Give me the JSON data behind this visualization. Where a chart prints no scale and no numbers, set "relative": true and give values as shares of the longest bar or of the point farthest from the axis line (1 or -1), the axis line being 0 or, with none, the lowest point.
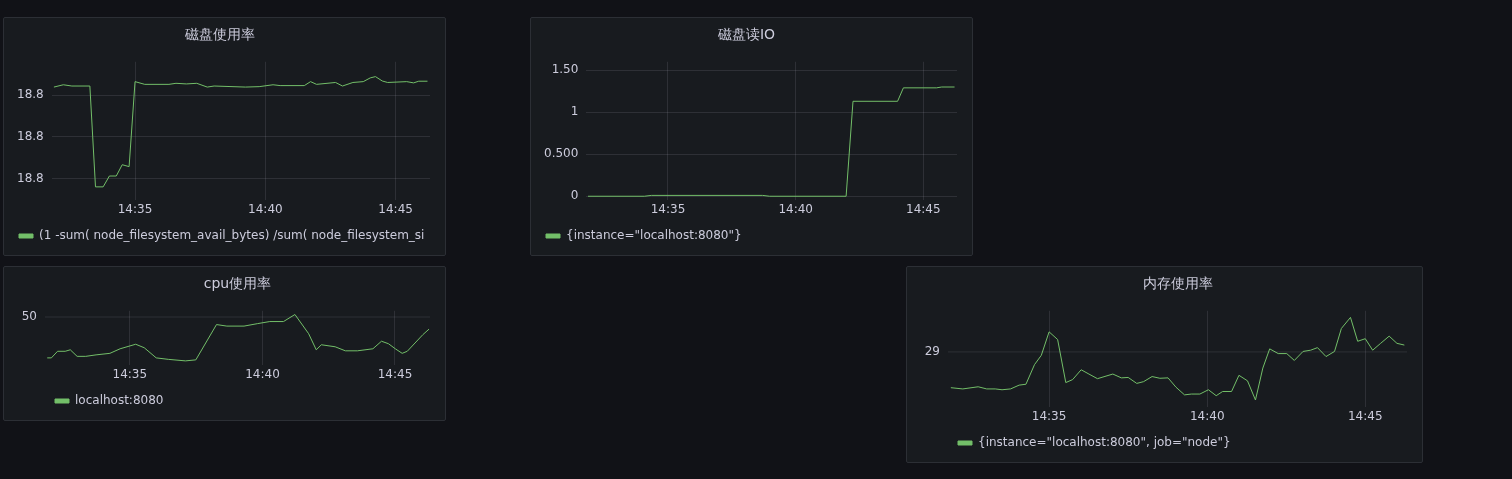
{
  "chart_data": [
    {
      "type": "line",
      "title": "磁盘使用率",
      "legend": "bottom left",
      "grid": true,
      "xlim": [
        14.53,
        14.772
      ],
      "xticks": [
        {
          "value": 14.5833,
          "label": "14:35"
        },
        {
          "value": 14.6667,
          "label": "14:40"
        },
        {
          "value": 14.75,
          "label": "14:45"
        }
      ],
      "ylim": [
        18.79,
        18.856
      ],
      "yticks": [
        {
          "value": 18.8,
          "label": "18.8"
        },
        {
          "value": 18.82,
          "label": "18.8"
        },
        {
          "value": 18.84,
          "label": "18.8"
        }
      ],
      "x": [
        14.5314,
        14.5374,
        14.5429,
        14.5544,
        14.558,
        14.5629,
        14.5669,
        14.5713,
        14.5751,
        14.5795,
        14.5833,
        14.5895,
        14.605,
        14.6095,
        14.6161,
        14.6228,
        14.6295,
        14.6339,
        14.6539,
        14.6627,
        14.6716,
        14.6761,
        14.6916,
        14.6956,
        14.6994,
        14.7116,
        14.716,
        14.7227,
        14.7293,
        14.7338,
        14.7371,
        14.7415,
        14.7449,
        14.7571,
        14.7615,
        14.7648,
        14.7704
      ],
      "series": [
        {
          "name": "(1 -sum( node_filesystem_avail_bytes) /sum( node_filesystem_si",
          "color": "#73bf69",
          "values": [
            18.8439,
            18.845,
            18.8444,
            18.8444,
            18.7961,
            18.7961,
            18.8013,
            18.8013,
            18.8067,
            18.8058,
            18.8465,
            18.8452,
            18.8452,
            18.8457,
            18.8454,
            18.8457,
            18.8439,
            18.8444,
            18.8439,
            18.8441,
            18.845,
            18.8446,
            18.8446,
            18.8465,
            18.8452,
            18.8461,
            18.8444,
            18.8461,
            18.8465,
            18.8483,
            18.8489,
            18.8468,
            18.8461,
            18.8465,
            18.8459,
            18.8467,
            18.8467
          ]
        }
      ]
    },
    {
      "type": "line",
      "title": "磁盘读IO",
      "legend": "bottom left",
      "grid": true,
      "xlim": [
        14.53,
        14.772
      ],
      "xticks": [
        {
          "value": 14.5833,
          "label": "14:35"
        },
        {
          "value": 14.6667,
          "label": "14:40"
        },
        {
          "value": 14.75,
          "label": "14:45"
        }
      ],
      "ylim": [
        -0.04,
        1.6
      ],
      "yticks": [
        0,
        {
          "value": 0.5,
          "label": "0.500"
        },
        1,
        {
          "value": 1.5,
          "label": "1.50"
        }
      ],
      "x": [
        14.5311,
        14.5679,
        14.5724,
        14.6451,
        14.6496,
        14.6996,
        14.7041,
        14.7332,
        14.737,
        14.7586,
        14.762,
        14.7704
      ],
      "series": [
        {
          "name": "{instance=\"localhost:8080\"}",
          "color": "#73bf69",
          "values": [
            0,
            0,
            0.01,
            0.01,
            0,
            0,
            1.13,
            1.13,
            1.29,
            1.29,
            1.3,
            1.3
          ]
        }
      ]
    },
    {
      "type": "line",
      "title": "cpu使用率",
      "legend": "bottom left",
      "grid": "x",
      "relative": true,
      "xlim": [
        14.53,
        14.772
      ],
      "xticks": [
        {
          "value": 14.5833,
          "label": "14:35"
        },
        {
          "value": 14.6667,
          "label": "14:40"
        },
        {
          "value": 14.75,
          "label": "14:45"
        }
      ],
      "ref_lines": [
        {
          "axis": "y",
          "value": 0.946
        }
      ],
      "annotations": [
        "50"
      ],
      "x": [
        14.5314,
        14.534,
        14.5379,
        14.5427,
        14.5459,
        14.5502,
        14.5556,
        14.5621,
        14.5708,
        14.5772,
        14.587,
        14.5924,
        14.5999,
        14.6075,
        14.6183,
        14.6248,
        14.6378,
        14.6443,
        14.6551,
        14.6637,
        14.6713,
        14.6799,
        14.6871,
        14.6957,
        14.7005,
        14.7037,
        14.7124,
        14.7188,
        14.7264,
        14.7361,
        14.7415,
        14.7459,
        14.7502,
        14.7545,
        14.7577,
        14.7675,
        14.7714
      ],
      "series": [
        {
          "name": "localhost:8080",
          "color": "#73bf69",
          "values": [
            0.065,
            0.065,
            0.207,
            0.207,
            0.239,
            0.098,
            0.098,
            0.13,
            0.163,
            0.261,
            0.359,
            0.283,
            0.065,
            0.033,
            0,
            0.022,
            0.783,
            0.75,
            0.75,
            0.804,
            0.848,
            0.848,
            1,
            0.587,
            0.239,
            0.348,
            0.304,
            0.217,
            0.217,
            0.261,
            0.424,
            0.37,
            0.261,
            0.163,
            0.207,
            0.565,
            0.685
          ]
        }
      ]
    },
    {
      "type": "line",
      "title": "内存使用率",
      "legend": "bottom left",
      "grid": "x",
      "relative": true,
      "xlim": [
        14.53,
        14.772
      ],
      "xticks": [
        {
          "value": 14.5833,
          "label": "14:35"
        },
        {
          "value": 14.6667,
          "label": "14:40"
        },
        {
          "value": 14.75,
          "label": "14:45"
        }
      ],
      "ref_lines": [
        {
          "axis": "y",
          "value": 0.582
        }
      ],
      "annotations": [
        "29"
      ],
      "x": [
        14.5315,
        14.5378,
        14.5459,
        14.5504,
        14.5549,
        14.5585,
        14.563,
        14.5675,
        14.5711,
        14.5756,
        14.5792,
        14.5833,
        14.5878,
        14.5921,
        14.5957,
        14.6002,
        14.6043,
        14.6088,
        14.6169,
        14.6214,
        14.625,
        14.6295,
        14.6331,
        14.6376,
        14.6417,
        14.646,
        14.6502,
        14.6547,
        14.6583,
        14.6628,
        14.6673,
        14.6714,
        14.6748,
        14.6795,
        14.6834,
        14.6879,
        14.6921,
        14.696,
        14.6996,
        14.7041,
        14.7086,
        14.7126,
        14.7172,
        14.7212,
        14.7248,
        14.7293,
        14.7338,
        14.7374,
        14.7422,
        14.746,
        14.75,
        14.7539,
        14.7581,
        14.7626,
        14.7667,
        14.7706
      ],
      "series": [
        {
          "name": "{instance=\"localhost:8080\", job=\"node\"}",
          "color": "#73bf69",
          "values": [
            0.149,
            0.134,
            0.16,
            0.134,
            0.134,
            0.124,
            0.134,
            0.18,
            0.191,
            0.428,
            0.541,
            0.825,
            0.732,
            0.211,
            0.247,
            0.366,
            0.314,
            0.258,
            0.314,
            0.268,
            0.273,
            0.201,
            0.222,
            0.284,
            0.263,
            0.268,
            0.155,
            0.062,
            0.072,
            0.072,
            0.124,
            0.052,
            0.103,
            0.103,
            0.299,
            0.232,
            0,
            0.387,
            0.619,
            0.562,
            0.562,
            0.479,
            0.588,
            0.603,
            0.634,
            0.526,
            0.588,
            0.866,
            1,
            0.711,
            0.742,
            0.603,
            0.686,
            0.773,
            0.686,
            0.665
          ]
        }
      ]
    }
  ]
}
